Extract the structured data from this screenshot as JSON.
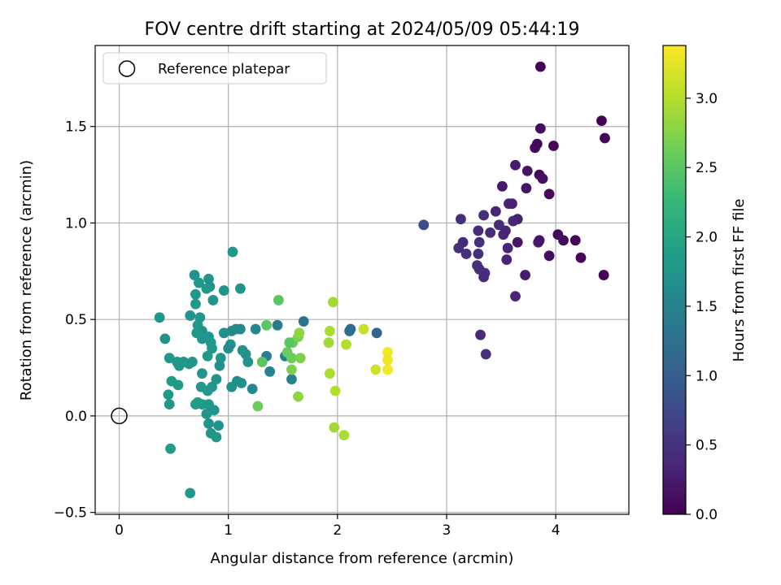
{
  "chart_data": {
    "type": "scatter",
    "title": "FOV centre drift starting at 2024/05/09 05:44:19",
    "xlabel": "Angular distance from reference (arcmin)",
    "ylabel": "Rotation from reference (arcmin)",
    "xlim": [
      -0.22,
      4.67
    ],
    "ylim": [
      -0.51,
      1.92
    ],
    "x_ticks": [
      0,
      1,
      2,
      3,
      4
    ],
    "x_tick_labels": [
      "0",
      "1",
      "2",
      "3",
      "4"
    ],
    "y_ticks": [
      -0.5,
      0.0,
      0.5,
      1.0,
      1.5
    ],
    "y_tick_labels": [
      "−0.5",
      "0.0",
      "0.5",
      "1.0",
      "1.5"
    ],
    "grid": true,
    "legend": {
      "location": "upper-left",
      "entries": [
        "Reference platepar"
      ]
    },
    "reference_point": {
      "x": 0.0,
      "y": 0.0
    },
    "colorbar": {
      "label": "Hours from first FF file",
      "colormap": "viridis",
      "range": [
        0.0,
        3.38
      ],
      "ticks": [
        0.0,
        0.5,
        1.0,
        1.5,
        2.0,
        2.5,
        3.0
      ],
      "tick_labels": [
        "0.0",
        "0.5",
        "1.0",
        "1.5",
        "2.0",
        "2.5",
        "3.0"
      ]
    },
    "colors": {
      "viridis": [
        "#440154",
        "#482878",
        "#3e4989",
        "#31688e",
        "#26828e",
        "#1f9e89",
        "#35b779",
        "#6ece58",
        "#b5de2b",
        "#fde725"
      ],
      "grid": "#b0b0b0",
      "axes": "#000000"
    },
    "point_columns": [
      "x",
      "y",
      "hours"
    ],
    "points": [
      [
        3.86,
        1.81,
        0.02
      ],
      [
        4.42,
        1.53,
        0.02
      ],
      [
        4.45,
        1.44,
        0.03
      ],
      [
        3.98,
        1.4,
        0.05
      ],
      [
        3.83,
        1.41,
        0.08
      ],
      [
        3.81,
        1.39,
        0.1
      ],
      [
        3.86,
        1.49,
        0.12
      ],
      [
        3.85,
        1.25,
        0.1
      ],
      [
        3.88,
        1.23,
        0.12
      ],
      [
        3.74,
        1.27,
        0.18
      ],
      [
        3.63,
        1.3,
        0.25
      ],
      [
        3.73,
        1.18,
        0.2
      ],
      [
        3.51,
        1.19,
        0.25
      ],
      [
        3.94,
        1.15,
        0.08
      ],
      [
        3.57,
        1.1,
        0.35
      ],
      [
        3.6,
        1.1,
        0.3
      ],
      [
        3.45,
        1.06,
        0.35
      ],
      [
        3.65,
        1.02,
        0.3
      ],
      [
        3.61,
        1.01,
        0.35
      ],
      [
        3.34,
        1.04,
        0.45
      ],
      [
        3.13,
        1.02,
        0.45
      ],
      [
        3.48,
        0.99,
        0.4
      ],
      [
        3.54,
        0.96,
        0.35
      ],
      [
        3.29,
        0.96,
        0.4
      ],
      [
        3.4,
        0.95,
        0.4
      ],
      [
        3.52,
        0.94,
        0.35
      ],
      [
        3.15,
        0.9,
        0.4
      ],
      [
        3.11,
        0.87,
        0.45
      ],
      [
        3.3,
        0.9,
        0.45
      ],
      [
        3.18,
        0.84,
        0.45
      ],
      [
        3.56,
        0.87,
        0.35
      ],
      [
        3.65,
        0.9,
        0.2
      ],
      [
        3.84,
        0.9,
        0.25
      ],
      [
        3.85,
        0.91,
        0.2
      ],
      [
        4.02,
        0.94,
        0.08
      ],
      [
        4.07,
        0.91,
        0.1
      ],
      [
        4.18,
        0.91,
        0.05
      ],
      [
        3.94,
        0.83,
        0.1
      ],
      [
        4.23,
        0.82,
        0.05
      ],
      [
        3.29,
        0.84,
        0.45
      ],
      [
        3.55,
        0.81,
        0.35
      ],
      [
        3.28,
        0.78,
        0.45
      ],
      [
        3.3,
        0.76,
        0.45
      ],
      [
        3.35,
        0.74,
        0.45
      ],
      [
        3.34,
        0.72,
        0.4
      ],
      [
        3.72,
        0.73,
        0.25
      ],
      [
        4.44,
        0.73,
        0.02
      ],
      [
        3.63,
        0.62,
        0.35
      ],
      [
        3.31,
        0.42,
        0.4
      ],
      [
        3.36,
        0.32,
        0.45
      ],
      [
        2.79,
        0.99,
        0.8
      ],
      [
        1.04,
        0.85,
        1.8
      ],
      [
        0.69,
        0.73,
        1.75
      ],
      [
        0.82,
        0.71,
        1.75
      ],
      [
        0.73,
        0.69,
        1.8
      ],
      [
        0.83,
        0.67,
        1.7
      ],
      [
        1.11,
        0.66,
        1.75
      ],
      [
        0.96,
        0.65,
        1.75
      ],
      [
        0.8,
        0.66,
        1.8
      ],
      [
        0.7,
        0.63,
        1.8
      ],
      [
        0.86,
        0.6,
        1.75
      ],
      [
        0.7,
        0.58,
        1.8
      ],
      [
        0.65,
        0.52,
        1.75
      ],
      [
        0.37,
        0.51,
        1.75
      ],
      [
        0.74,
        0.51,
        1.8
      ],
      [
        0.72,
        0.47,
        1.8
      ],
      [
        0.76,
        0.44,
        1.7
      ],
      [
        1.03,
        0.44,
        1.65
      ],
      [
        1.07,
        0.45,
        1.65
      ],
      [
        1.11,
        0.45,
        1.6
      ],
      [
        0.96,
        0.43,
        1.7
      ],
      [
        0.71,
        0.43,
        1.8
      ],
      [
        0.82,
        0.41,
        1.75
      ],
      [
        0.42,
        0.4,
        1.75
      ],
      [
        0.76,
        0.4,
        1.75
      ],
      [
        0.84,
        0.38,
        1.8
      ],
      [
        1.02,
        0.37,
        1.7
      ],
      [
        1.0,
        0.35,
        1.65
      ],
      [
        1.13,
        0.34,
        1.7
      ],
      [
        1.16,
        0.32,
        1.7
      ],
      [
        0.93,
        0.3,
        1.75
      ],
      [
        0.85,
        0.35,
        1.8
      ],
      [
        0.81,
        0.31,
        1.8
      ],
      [
        0.59,
        0.28,
        1.75
      ],
      [
        0.53,
        0.28,
        1.75
      ],
      [
        0.64,
        0.27,
        1.8
      ],
      [
        0.67,
        0.28,
        1.75
      ],
      [
        0.46,
        0.3,
        1.8
      ],
      [
        1.18,
        0.28,
        1.7
      ],
      [
        0.76,
        0.22,
        1.75
      ],
      [
        0.92,
        0.26,
        1.7
      ],
      [
        0.55,
        0.26,
        1.8
      ],
      [
        0.48,
        0.18,
        1.85
      ],
      [
        0.54,
        0.16,
        1.8
      ],
      [
        1.08,
        0.18,
        1.65
      ],
      [
        0.89,
        0.19,
        1.75
      ],
      [
        0.75,
        0.15,
        1.8
      ],
      [
        0.85,
        0.15,
        1.75
      ],
      [
        0.45,
        0.11,
        1.8
      ],
      [
        1.03,
        0.15,
        1.7
      ],
      [
        1.12,
        0.17,
        1.7
      ],
      [
        0.81,
        0.13,
        1.8
      ],
      [
        0.46,
        0.06,
        1.8
      ],
      [
        0.7,
        0.06,
        1.85
      ],
      [
        0.76,
        0.06,
        1.8
      ],
      [
        0.72,
        0.07,
        1.85
      ],
      [
        0.82,
        0.06,
        1.8
      ],
      [
        0.87,
        0.03,
        1.75
      ],
      [
        0.8,
        0.01,
        1.75
      ],
      [
        0.82,
        -0.04,
        1.75
      ],
      [
        0.91,
        -0.05,
        1.75
      ],
      [
        0.84,
        -0.09,
        1.75
      ],
      [
        0.89,
        -0.11,
        1.8
      ],
      [
        0.47,
        -0.17,
        1.85
      ],
      [
        0.65,
        -0.4,
        1.8
      ],
      [
        1.22,
        0.14,
        1.6
      ],
      [
        1.25,
        0.45,
        1.55
      ],
      [
        1.38,
        0.23,
        1.5
      ],
      [
        1.35,
        0.31,
        1.45
      ],
      [
        1.45,
        0.47,
        1.4
      ],
      [
        1.52,
        0.31,
        1.5
      ],
      [
        1.58,
        0.19,
        1.5
      ],
      [
        1.69,
        0.49,
        1.3
      ],
      [
        2.11,
        0.44,
        1.2
      ],
      [
        2.12,
        0.45,
        1.2
      ],
      [
        2.36,
        0.43,
        1.1
      ],
      [
        1.35,
        0.47,
        2.5
      ],
      [
        1.31,
        0.28,
        2.5
      ],
      [
        1.46,
        0.6,
        2.5
      ],
      [
        1.27,
        0.05,
        2.6
      ],
      [
        1.54,
        0.33,
        2.6
      ],
      [
        1.59,
        0.38,
        2.6
      ],
      [
        1.56,
        0.38,
        2.5
      ],
      [
        1.58,
        0.3,
        2.6
      ],
      [
        1.58,
        0.24,
        2.7
      ],
      [
        1.64,
        0.41,
        2.7
      ],
      [
        1.65,
        0.43,
        2.8
      ],
      [
        1.66,
        0.3,
        2.7
      ],
      [
        1.64,
        0.1,
        2.8
      ],
      [
        1.96,
        0.59,
        2.9
      ],
      [
        1.93,
        0.44,
        2.95
      ],
      [
        1.92,
        0.38,
        2.9
      ],
      [
        2.08,
        0.37,
        3.0
      ],
      [
        1.93,
        0.22,
        2.95
      ],
      [
        1.98,
        0.13,
        3.0
      ],
      [
        1.97,
        -0.06,
        2.9
      ],
      [
        2.06,
        -0.1,
        2.95
      ],
      [
        2.24,
        0.45,
        3.1
      ],
      [
        2.35,
        0.24,
        3.15
      ],
      [
        2.46,
        0.33,
        3.35
      ],
      [
        2.46,
        0.29,
        3.3
      ],
      [
        2.46,
        0.24,
        3.35
      ]
    ]
  }
}
